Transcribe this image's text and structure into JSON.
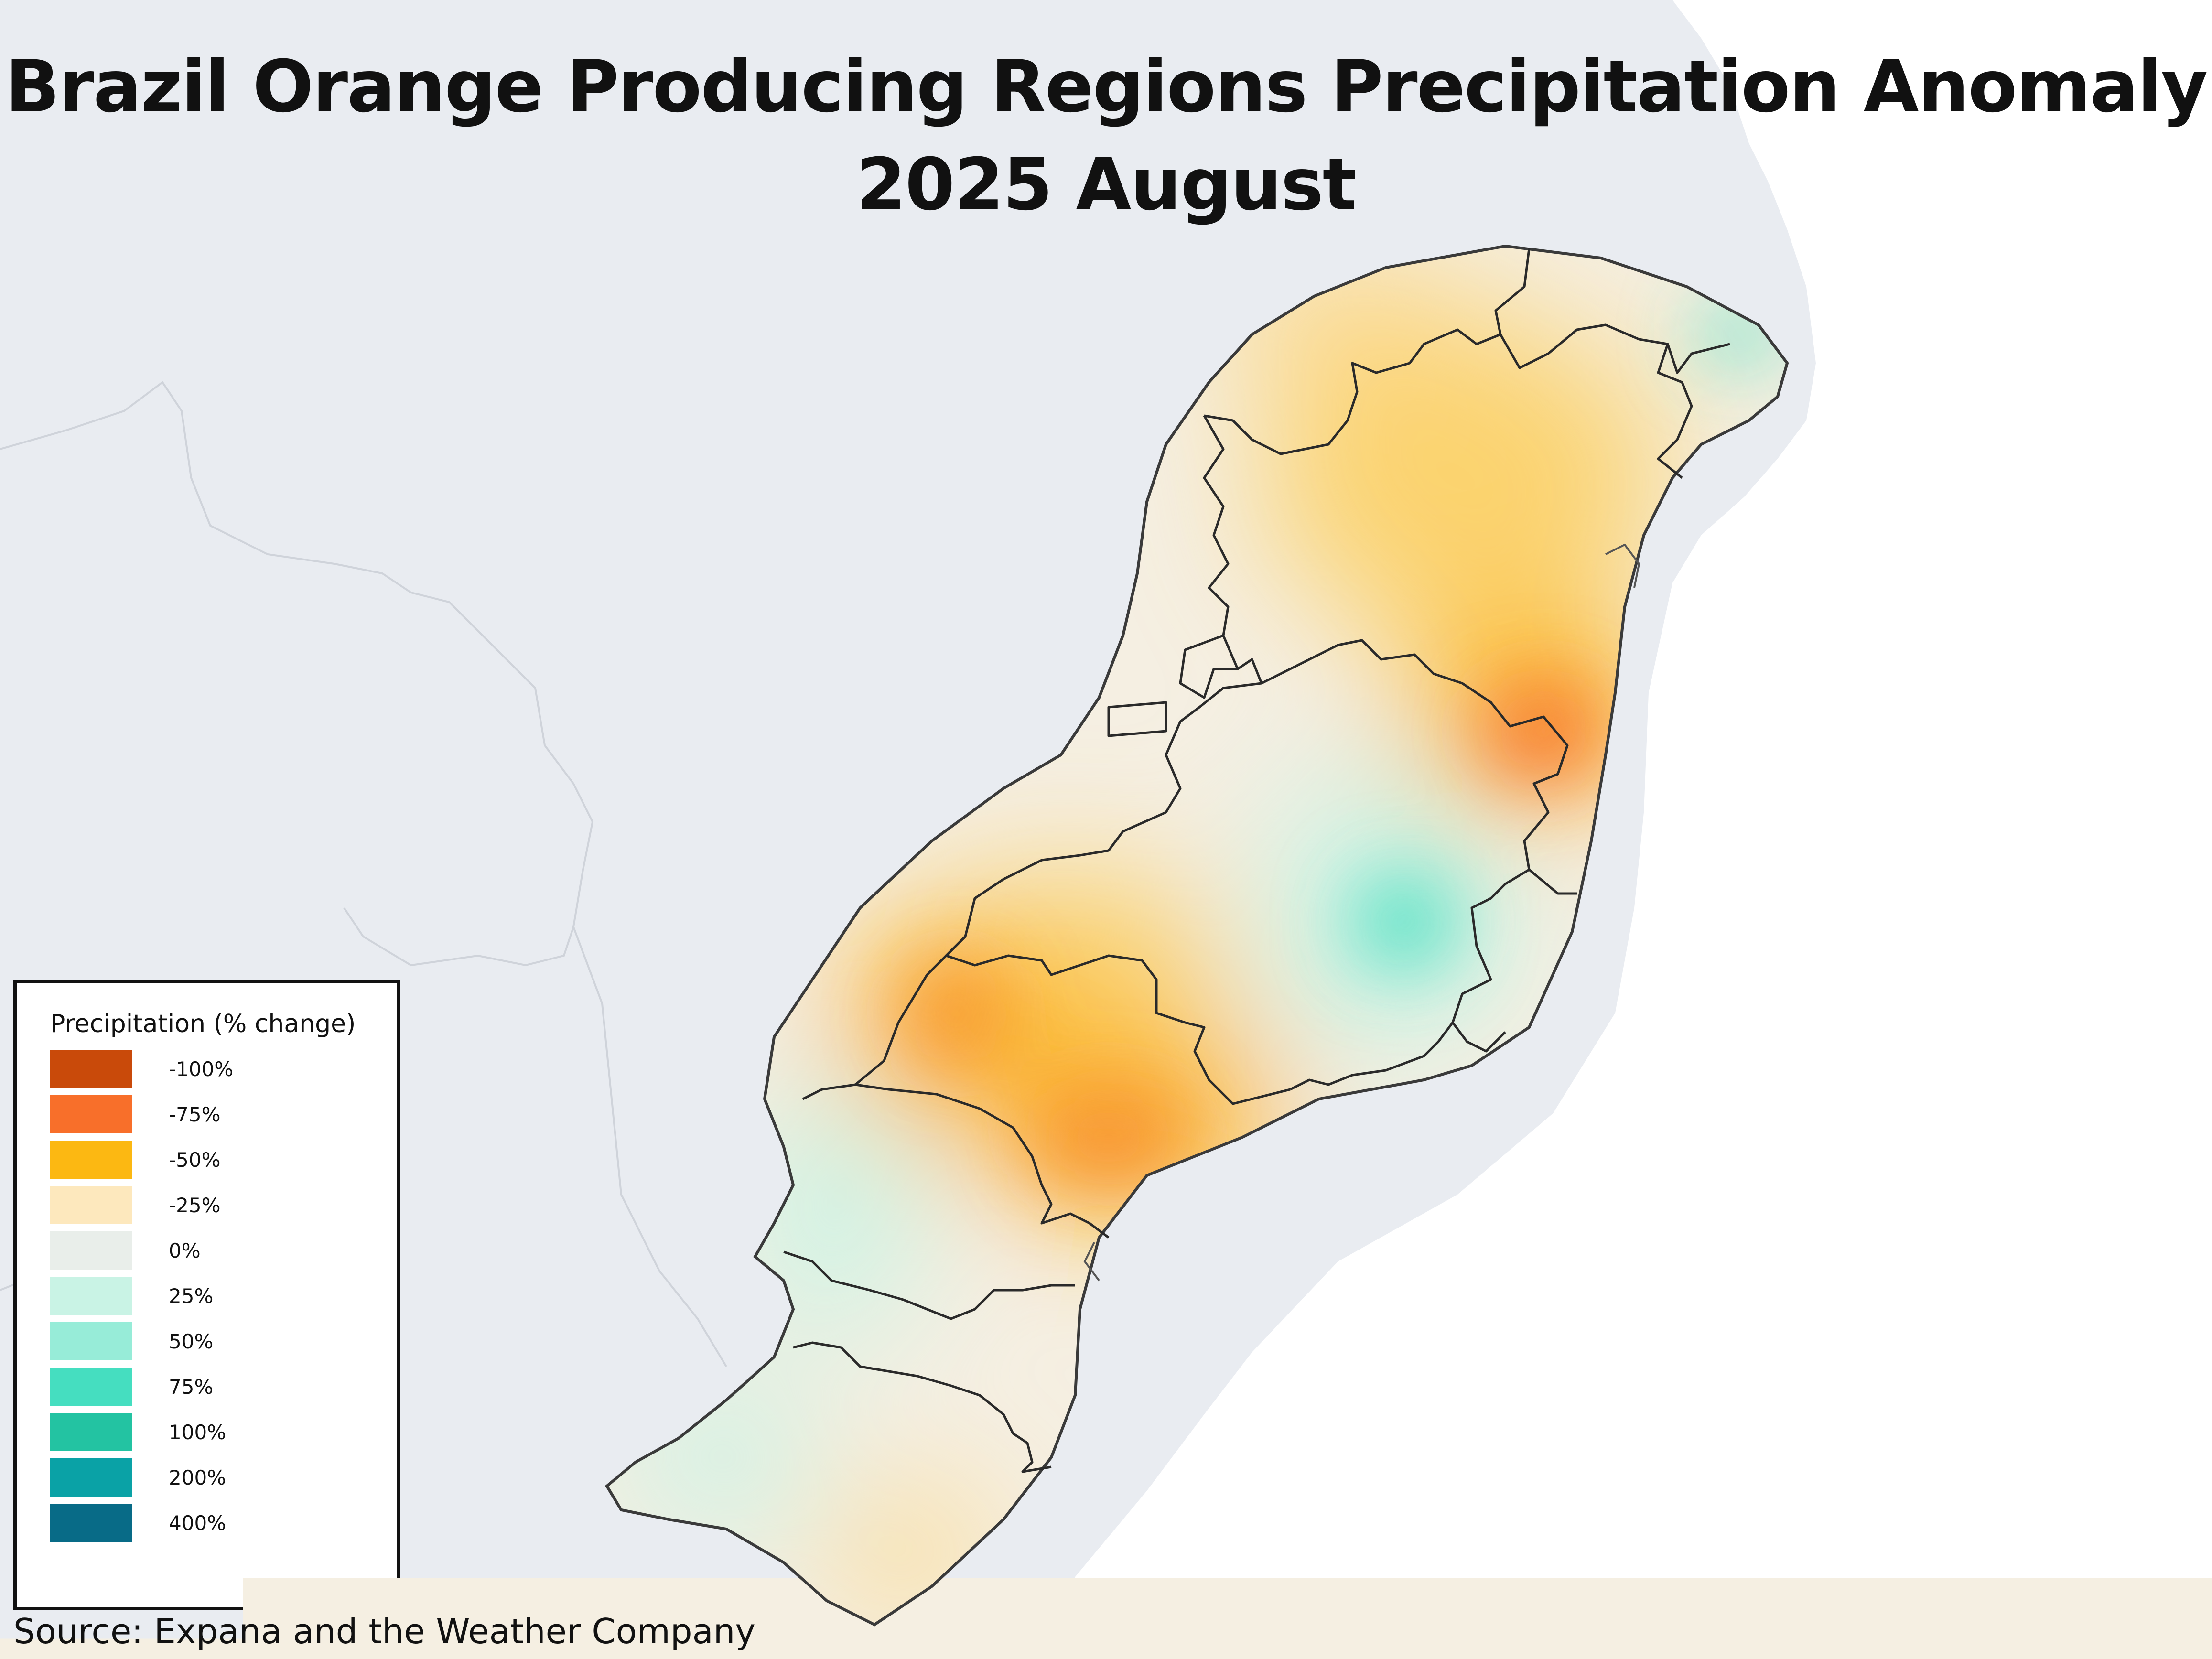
{
  "title": {
    "line1": "Brazil Orange Producing Regions Precipitation Anomaly",
    "line2": "2025 August"
  },
  "legend": {
    "title": "Precipitation (% change)",
    "items": [
      {
        "label": "-100%",
        "color": "#c94a0a"
      },
      {
        "label": "-75%",
        "color": "#f86f2a"
      },
      {
        "label": "-50%",
        "color": "#fcb812"
      },
      {
        "label": "-25%",
        "color": "#fde8bd"
      },
      {
        "label": "0%",
        "color": "#e9eeea"
      },
      {
        "label": "25%",
        "color": "#c9f3e5"
      },
      {
        "label": "50%",
        "color": "#97ecd8"
      },
      {
        "label": "75%",
        "color": "#45dec0"
      },
      {
        "label": "100%",
        "color": "#23c3a2"
      },
      {
        "label": "200%",
        "color": "#0aa2a6"
      },
      {
        "label": "400%",
        "color": "#086b87"
      }
    ]
  },
  "source": "Source: Expana and the Weather Company",
  "colors": {
    "land_background": "#e9ecf1",
    "ocean": "#ffffff",
    "border_line": "#2a2a2a"
  }
}
